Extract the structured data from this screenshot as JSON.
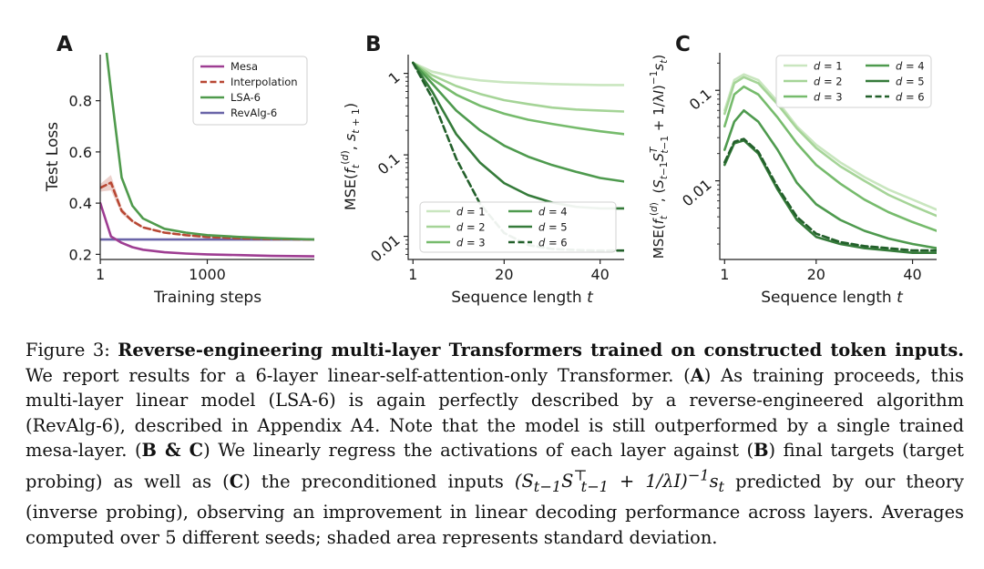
{
  "chart_data": [
    {
      "type": "line",
      "panel_label": "A",
      "xlabel": "Training steps",
      "ylabel": "Test Loss",
      "xticks": [
        "1",
        "1000"
      ],
      "yticks": [
        "0.2",
        "0.4",
        "0.6",
        "0.8"
      ],
      "xlim": [
        0,
        2000
      ],
      "ylim": [
        0.18,
        0.98
      ],
      "legend_position": "top-right",
      "colors": {
        "Mesa": "#9e3d92",
        "Interpolation": "#b84733",
        "LSA-6": "#4f9a4c",
        "RevAlg-6": "#6a65a8"
      },
      "series": [
        {
          "name": "Mesa",
          "style": "solid",
          "x": [
            1,
            100,
            200,
            300,
            400,
            600,
            800,
            1000,
            1300,
            1600,
            2000
          ],
          "y": [
            0.4,
            0.27,
            0.245,
            0.228,
            0.218,
            0.208,
            0.203,
            0.2,
            0.197,
            0.194,
            0.192
          ]
        },
        {
          "name": "Interpolation",
          "style": "dashed",
          "x": [
            1,
            100,
            200,
            300,
            400,
            600,
            800,
            1000,
            1300,
            1600,
            2000
          ],
          "y": [
            0.46,
            0.48,
            0.37,
            0.33,
            0.305,
            0.285,
            0.275,
            0.268,
            0.263,
            0.26,
            0.258
          ]
        },
        {
          "name": "LSA-6",
          "style": "solid",
          "x": [
            1,
            100,
            200,
            300,
            400,
            600,
            800,
            1000,
            1300,
            1600,
            2000
          ],
          "y": [
            1.2,
            0.84,
            0.5,
            0.39,
            0.34,
            0.3,
            0.285,
            0.275,
            0.268,
            0.263,
            0.258
          ]
        },
        {
          "name": "RevAlg-6",
          "style": "solid",
          "x": [
            1,
            2000
          ],
          "y": [
            0.258,
            0.258
          ]
        }
      ]
    },
    {
      "type": "line",
      "panel_label": "B",
      "xlabel": "Sequence length t",
      "ylabel": "MSE(f_t^(d), s_t+1)",
      "yscale": "log",
      "xticks": [
        "1",
        "20",
        "40"
      ],
      "yticks": [
        "1",
        "0.1",
        "0.01"
      ],
      "xlim": [
        0,
        45
      ],
      "ylim": [
        0.0052,
        1.7
      ],
      "legend_position": "bottom-right",
      "series": [
        {
          "name": "d = 1",
          "style": "solid",
          "color": "#c9e6bf",
          "x": [
            1,
            5,
            10,
            15,
            20,
            25,
            30,
            35,
            40,
            45
          ],
          "y": [
            1.35,
            1.05,
            0.9,
            0.82,
            0.78,
            0.76,
            0.74,
            0.73,
            0.72,
            0.72
          ]
        },
        {
          "name": "d = 2",
          "style": "solid",
          "color": "#a5d497",
          "x": [
            1,
            5,
            10,
            15,
            20,
            25,
            30,
            35,
            40,
            45
          ],
          "y": [
            1.35,
            0.95,
            0.7,
            0.56,
            0.47,
            0.42,
            0.38,
            0.36,
            0.35,
            0.34
          ]
        },
        {
          "name": "d = 3",
          "style": "solid",
          "color": "#76bb6c",
          "x": [
            1,
            5,
            10,
            15,
            20,
            25,
            30,
            35,
            40,
            45
          ],
          "y": [
            1.35,
            0.85,
            0.55,
            0.4,
            0.32,
            0.27,
            0.24,
            0.215,
            0.195,
            0.18
          ]
        },
        {
          "name": "d = 4",
          "style": "solid",
          "color": "#4e9a4e",
          "x": [
            1,
            5,
            10,
            15,
            20,
            25,
            30,
            35,
            40,
            45
          ],
          "y": [
            1.35,
            0.75,
            0.35,
            0.2,
            0.13,
            0.095,
            0.075,
            0.062,
            0.052,
            0.047
          ]
        },
        {
          "name": "d = 5",
          "style": "solid",
          "color": "#357b3a",
          "x": [
            1,
            5,
            10,
            15,
            20,
            25,
            30,
            35,
            40,
            45
          ],
          "y": [
            1.35,
            0.6,
            0.18,
            0.08,
            0.045,
            0.032,
            0.026,
            0.023,
            0.022,
            0.022
          ]
        },
        {
          "name": "d = 6",
          "style": "dashed",
          "color": "#23602b",
          "x": [
            1,
            5,
            10,
            15,
            20,
            25,
            30,
            35,
            40,
            45
          ],
          "y": [
            1.35,
            0.5,
            0.09,
            0.025,
            0.011,
            0.0078,
            0.007,
            0.0068,
            0.0067,
            0.0067
          ]
        }
      ]
    },
    {
      "type": "line",
      "panel_label": "C",
      "xlabel": "Sequence length t",
      "ylabel": "MSE(f_t^(d), (S_t−1 S_t−1^T + 1/λ I)^−1 s_t)",
      "yscale": "log",
      "xticks": [
        "1",
        "20",
        "40"
      ],
      "yticks": [
        "0.1",
        "0.01"
      ],
      "xlim": [
        0,
        45
      ],
      "ylim": [
        0.00135,
        0.26
      ],
      "legend_position": "top-right",
      "series": [
        {
          "name": "d = 1",
          "style": "solid",
          "color": "#c9e6bf",
          "x": [
            1,
            3,
            5,
            8,
            12,
            16,
            20,
            25,
            30,
            35,
            40,
            45
          ],
          "y": [
            0.06,
            0.13,
            0.15,
            0.13,
            0.075,
            0.04,
            0.025,
            0.016,
            0.011,
            0.008,
            0.0062,
            0.0048
          ]
        },
        {
          "name": "d = 2",
          "style": "solid",
          "color": "#a5d497",
          "x": [
            1,
            3,
            5,
            8,
            12,
            16,
            20,
            25,
            30,
            35,
            40,
            45
          ],
          "y": [
            0.055,
            0.12,
            0.14,
            0.12,
            0.07,
            0.038,
            0.023,
            0.0145,
            0.01,
            0.007,
            0.0053,
            0.0041
          ]
        },
        {
          "name": "d = 3",
          "style": "solid",
          "color": "#76bb6c",
          "x": [
            1,
            3,
            5,
            8,
            12,
            16,
            20,
            25,
            30,
            35,
            40,
            45
          ],
          "y": [
            0.04,
            0.09,
            0.11,
            0.09,
            0.05,
            0.026,
            0.015,
            0.0093,
            0.0062,
            0.0045,
            0.0035,
            0.0028
          ]
        },
        {
          "name": "d = 4",
          "style": "solid",
          "color": "#4e9a4e",
          "x": [
            1,
            3,
            5,
            8,
            12,
            16,
            20,
            25,
            30,
            35,
            40,
            45
          ],
          "y": [
            0.022,
            0.045,
            0.06,
            0.045,
            0.022,
            0.0095,
            0.0055,
            0.0037,
            0.0028,
            0.0023,
            0.002,
            0.0018
          ]
        },
        {
          "name": "d = 5",
          "style": "solid",
          "color": "#357b3a",
          "x": [
            1,
            3,
            5,
            8,
            12,
            16,
            20,
            25,
            30,
            35,
            40,
            45
          ],
          "y": [
            0.015,
            0.026,
            0.028,
            0.02,
            0.008,
            0.0037,
            0.0024,
            0.002,
            0.0018,
            0.0017,
            0.0016,
            0.0016
          ]
        },
        {
          "name": "d = 6",
          "style": "dashed",
          "color": "#23602b",
          "x": [
            1,
            3,
            5,
            8,
            12,
            16,
            20,
            25,
            30,
            35,
            40,
            45
          ],
          "y": [
            0.016,
            0.027,
            0.029,
            0.021,
            0.0085,
            0.004,
            0.0026,
            0.0021,
            0.0019,
            0.0018,
            0.0017,
            0.0017
          ]
        }
      ]
    }
  ],
  "caption": {
    "label": "Figure 3: ",
    "title": "Reverse-engineering multi-layer Transformers trained on constructed token inputs.",
    "s1": " We report results for a 6-layer linear-self-attention-only Transformer. (",
    "refA1": "A",
    "s2": ") As training proceeds, this multi-layer linear model (LSA-6) is again perfectly described by a reverse-engineered algorithm (RevAlg-6), described in Appendix A4. Note that the model is still outperformed by a single trained mesa-layer. (",
    "refBC": "B & C",
    "s3": ") We linearly regress the activations of each layer against (",
    "refB": "B",
    "s4": ") final targets (target probing) as well as (",
    "refC": "C",
    "s5": ") the preconditioned inputs ",
    "math": "(S_t−1 S_t−1^⊤ + 1/λI)^−1 s_t",
    "s6": " predicted by our theory (inverse probing), observing an improvement in linear decoding performance across layers. Averages computed over 5 different seeds; shaded area represents standard deviation."
  }
}
